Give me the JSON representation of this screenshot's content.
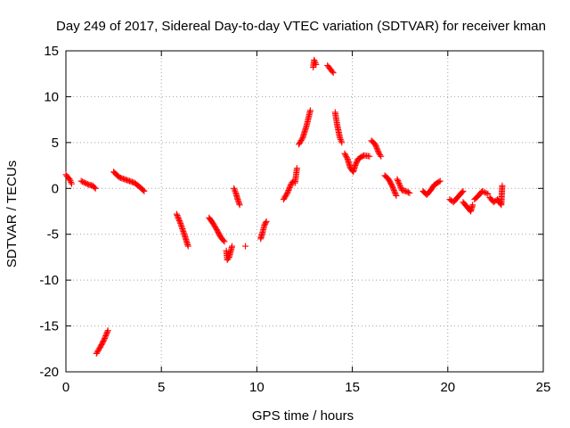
{
  "chart_data": {
    "type": "scatter",
    "title": "Day 249 of 2017, Sidereal Day-to-day VTEC variation (SDTVAR) for receiver kman",
    "xlabel": "GPS time / hours",
    "ylabel": "SDTVAR / TECUs",
    "xlim": [
      0,
      25
    ],
    "ylim": [
      -20,
      15
    ],
    "xticks": [
      0,
      5,
      10,
      15,
      20,
      25
    ],
    "yticks": [
      -20,
      -15,
      -10,
      -5,
      0,
      5,
      10,
      15
    ],
    "grid": true,
    "marker": "+",
    "color": "#ff0000",
    "segments": [
      [
        [
          0.0,
          1.5
        ],
        [
          0.1,
          1.2
        ],
        [
          0.2,
          1.0
        ],
        [
          0.3,
          0.5
        ]
      ],
      [
        [
          0.8,
          0.8
        ],
        [
          1.0,
          0.6
        ],
        [
          1.2,
          0.4
        ],
        [
          1.4,
          0.3
        ],
        [
          1.55,
          0.0
        ]
      ],
      [
        [
          1.6,
          -18.0
        ],
        [
          1.8,
          -17.3
        ],
        [
          2.0,
          -16.5
        ],
        [
          2.2,
          -15.5
        ]
      ],
      [
        [
          2.5,
          1.8
        ],
        [
          2.8,
          1.2
        ],
        [
          3.2,
          0.9
        ],
        [
          3.6,
          0.6
        ],
        [
          3.9,
          0.1
        ],
        [
          4.1,
          -0.3
        ]
      ],
      [
        [
          5.8,
          -2.8
        ],
        [
          6.0,
          -3.8
        ],
        [
          6.2,
          -5.0
        ],
        [
          6.4,
          -6.3
        ]
      ],
      [
        [
          7.5,
          -3.2
        ],
        [
          7.7,
          -3.8
        ],
        [
          7.9,
          -4.5
        ],
        [
          8.1,
          -5.3
        ],
        [
          8.3,
          -5.8
        ]
      ],
      [
        [
          8.4,
          -6.8
        ],
        [
          8.45,
          -7.8
        ],
        [
          8.55,
          -7.5
        ],
        [
          8.7,
          -6.3
        ]
      ],
      [
        [
          8.8,
          0.0
        ],
        [
          8.9,
          -0.5
        ],
        [
          9.0,
          -1.2
        ],
        [
          9.1,
          -1.8
        ]
      ],
      [
        [
          9.4,
          -6.3
        ]
      ],
      [
        [
          10.2,
          -5.5
        ],
        [
          10.3,
          -4.8
        ],
        [
          10.4,
          -4.0
        ],
        [
          10.5,
          -3.6
        ]
      ],
      [
        [
          11.4,
          -1.2
        ],
        [
          11.6,
          -0.5
        ],
        [
          11.8,
          0.5
        ],
        [
          11.9,
          0.8
        ]
      ],
      [
        [
          12.0,
          0.6
        ],
        [
          12.1,
          2.2
        ]
      ],
      [
        [
          12.2,
          4.8
        ],
        [
          12.4,
          5.5
        ],
        [
          12.6,
          6.8
        ],
        [
          12.8,
          8.5
        ]
      ],
      [
        [
          12.95,
          13.2
        ],
        [
          13.0,
          14.0
        ],
        [
          13.1,
          13.5
        ]
      ],
      [
        [
          13.7,
          13.4
        ],
        [
          13.85,
          13.0
        ],
        [
          14.0,
          12.6
        ]
      ],
      [
        [
          14.1,
          8.3
        ],
        [
          14.2,
          7.0
        ],
        [
          14.35,
          5.5
        ],
        [
          14.45,
          5.0
        ]
      ],
      [
        [
          14.6,
          3.8
        ],
        [
          14.75,
          3.2
        ],
        [
          14.9,
          2.2
        ],
        [
          15.05,
          1.8
        ],
        [
          15.15,
          2.5
        ],
        [
          15.3,
          3.2
        ],
        [
          15.6,
          3.6
        ],
        [
          15.9,
          3.5
        ]
      ],
      [
        [
          16.0,
          5.2
        ],
        [
          16.2,
          4.8
        ],
        [
          16.4,
          3.8
        ],
        [
          16.5,
          3.5
        ]
      ],
      [
        [
          16.7,
          1.4
        ],
        [
          16.9,
          1.0
        ],
        [
          17.1,
          0.2
        ],
        [
          17.3,
          -0.8
        ]
      ],
      [
        [
          17.35,
          1.0
        ],
        [
          17.6,
          -0.2
        ],
        [
          17.8,
          -0.3
        ],
        [
          18.0,
          -0.5
        ]
      ],
      [
        [
          18.7,
          -0.3
        ],
        [
          18.9,
          -0.7
        ],
        [
          19.1,
          -0.2
        ],
        [
          19.3,
          0.4
        ],
        [
          19.6,
          0.8
        ]
      ],
      [
        [
          20.1,
          -1.2
        ],
        [
          20.3,
          -1.5
        ],
        [
          20.5,
          -1.0
        ],
        [
          20.8,
          -0.3
        ]
      ],
      [
        [
          20.8,
          -1.5
        ],
        [
          21.0,
          -2.0
        ],
        [
          21.2,
          -2.5
        ],
        [
          21.3,
          -1.8
        ]
      ],
      [
        [
          21.4,
          -1.2
        ],
        [
          21.6,
          -0.8
        ],
        [
          21.8,
          -0.3
        ],
        [
          22.1,
          -0.6
        ]
      ],
      [
        [
          22.2,
          -1.0
        ],
        [
          22.4,
          -1.5
        ],
        [
          22.6,
          -1.2
        ],
        [
          22.8,
          -1.8
        ],
        [
          22.85,
          0.3
        ]
      ]
    ]
  }
}
